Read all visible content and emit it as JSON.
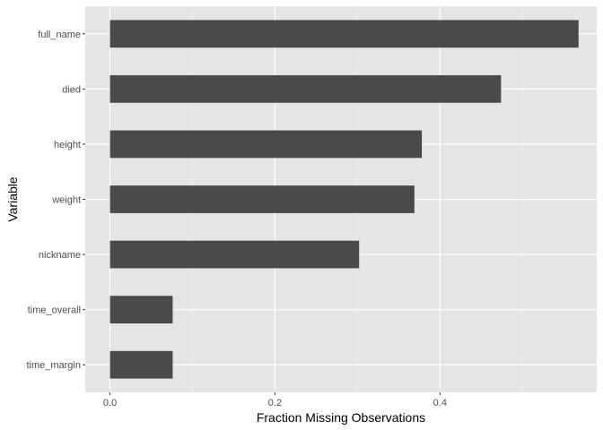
{
  "colors": {
    "panel_background": "#e5e5e5",
    "grid_major": "#ffffff",
    "grid_minor": "#f2f2f2",
    "bar_fill": "#4a4a4a",
    "tick_text": "#4d4d4d",
    "tick_mark": "#333333"
  },
  "chart_data": {
    "type": "bar",
    "orientation": "horizontal",
    "xlabel": "Fraction Missing Observations",
    "ylabel": "Variable",
    "xlim": [
      -0.03,
      0.59
    ],
    "x_ticks": [
      0.0,
      0.2,
      0.4
    ],
    "x_tick_labels": [
      "0.0",
      "0.2",
      "0.4"
    ],
    "x_minor_ticks": [
      0.1,
      0.3,
      0.5
    ],
    "grid": true,
    "categories": [
      "full_name",
      "died",
      "height",
      "weight",
      "nickname",
      "time_overall",
      "time_margin"
    ],
    "values": [
      0.568,
      0.474,
      0.378,
      0.369,
      0.302,
      0.076,
      0.076
    ]
  }
}
